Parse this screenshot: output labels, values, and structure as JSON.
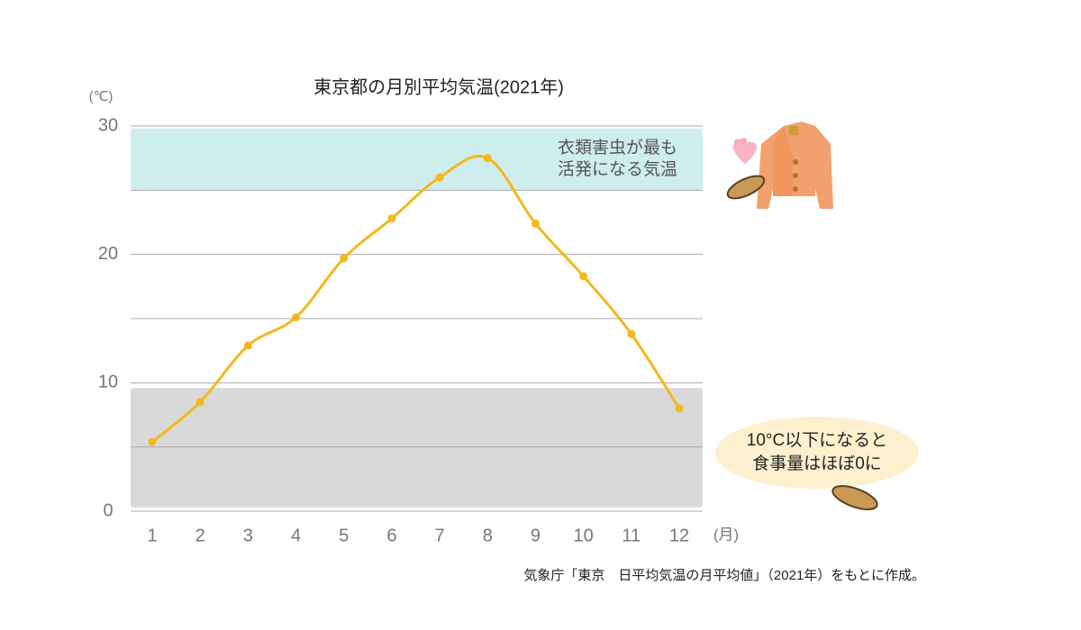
{
  "chart_data": {
    "type": "line",
    "title": "東京都の月別平均気温(2021年)",
    "y_unit": "(℃)",
    "x_unit": "(月)",
    "categories": [
      "1",
      "2",
      "3",
      "4",
      "5",
      "6",
      "7",
      "8",
      "9",
      "10",
      "11",
      "12"
    ],
    "values": [
      5.4,
      8.5,
      12.9,
      15.1,
      19.7,
      22.8,
      26.0,
      27.5,
      22.4,
      18.3,
      13.8,
      8.0
    ],
    "color": "#f4b81c",
    "smooth": true,
    "ylim": [
      0,
      30
    ],
    "yticks": [
      0,
      10,
      20,
      30
    ],
    "yticks_minor": [
      5,
      15,
      25
    ],
    "grid": true,
    "bands": [
      {
        "from": 25,
        "to": 29.8,
        "color": "#ceeeed",
        "label_lines": [
          "衣類害虫が最も",
          "活発になる気温"
        ]
      },
      {
        "from": 0.3,
        "to": 9.6,
        "color": "#d9d9d9"
      }
    ],
    "callout_lines": [
      "10°C以下になると",
      "食事量はほぼ0に"
    ],
    "source": "気象庁「東京　日平均気温の月平均値」（2021年）をもとに作成。"
  }
}
